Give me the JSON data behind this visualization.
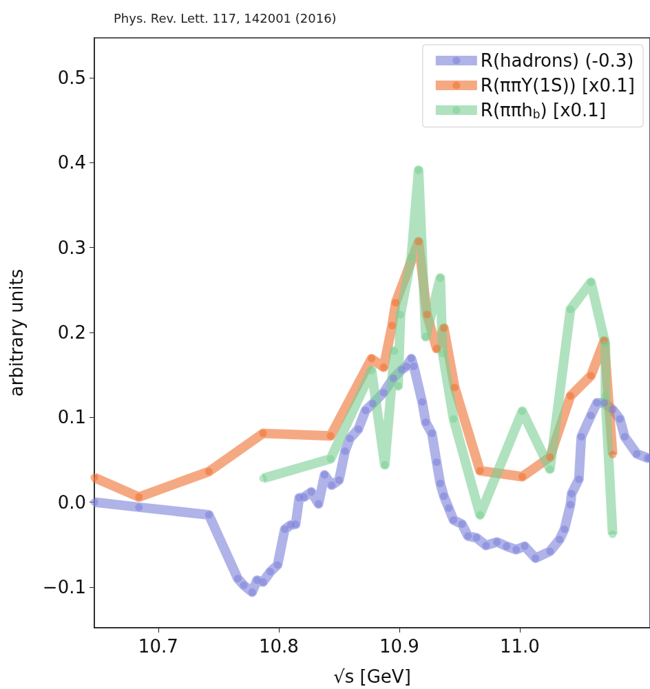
{
  "chart_data": {
    "type": "line",
    "title": "Phys. Rev. Lett. 117, 142001 (2016)",
    "xlabel": "√s [GeV]",
    "ylabel": "arbitrary units",
    "xlim": [
      10.647,
      11.108
    ],
    "xticks": [
      10.7,
      10.8,
      10.9,
      {
        "value": 11.0,
        "label": "11.0"
      }
    ],
    "ylim": [
      -0.148,
      0.547
    ],
    "yticks": [
      {
        "value": -0.1,
        "label": "−0.1"
      },
      {
        "value": 0,
        "label": "0.0"
      },
      0.1,
      0.2,
      0.3,
      0.4,
      0.5
    ],
    "grid": false,
    "legend": "top right",
    "marker": "circle",
    "line_style": "solid",
    "series": [
      {
        "name": "R(hadrons) (-0.3)",
        "color": "#7b80d9",
        "x": [
          10.647,
          10.684,
          10.742,
          10.766,
          10.771,
          10.778,
          10.782,
          10.787,
          10.793,
          10.799,
          10.805,
          10.81,
          10.814,
          10.817,
          10.821,
          10.827,
          10.833,
          10.838,
          10.844,
          10.85,
          10.855,
          10.859,
          10.866,
          10.872,
          10.878,
          10.887,
          10.895,
          10.902,
          10.906,
          10.91,
          10.912,
          10.919,
          10.922,
          10.927,
          10.931,
          10.934,
          10.937,
          10.941,
          10.945,
          10.952,
          10.957,
          10.964,
          10.972,
          10.981,
          10.989,
          10.997,
          11.004,
          11.013,
          11.025,
          11.033,
          11.037,
          11.042,
          11.043,
          11.049,
          11.051,
          11.059,
          11.064,
          11.07,
          11.077,
          11.083,
          11.087,
          11.097,
          11.106,
          11.108
        ],
        "values": [
          0.0,
          -0.006,
          -0.015,
          -0.09,
          -0.098,
          -0.106,
          -0.092,
          -0.094,
          -0.082,
          -0.074,
          -0.032,
          -0.027,
          -0.026,
          0.005,
          0.006,
          0.012,
          -0.002,
          0.032,
          0.02,
          0.026,
          0.06,
          0.075,
          0.086,
          0.108,
          0.116,
          0.129,
          0.146,
          0.156,
          0.16,
          0.169,
          0.16,
          0.118,
          0.094,
          0.081,
          0.047,
          0.022,
          0.007,
          -0.007,
          -0.021,
          -0.026,
          -0.04,
          -0.042,
          -0.051,
          -0.047,
          -0.052,
          -0.056,
          -0.052,
          -0.066,
          -0.058,
          -0.044,
          -0.032,
          -0.003,
          0.01,
          0.027,
          0.077,
          0.102,
          0.117,
          0.117,
          0.109,
          0.098,
          0.077,
          0.057,
          0.052,
          0.052
        ]
      },
      {
        "name": "R(ππY(1S)) [x0.1]",
        "color": "#ef6f2f",
        "x": [
          10.647,
          10.684,
          10.742,
          10.787,
          10.843,
          10.877,
          10.887,
          10.894,
          10.897,
          10.916,
          10.923,
          10.931,
          10.937,
          10.946,
          10.967,
          11.002,
          11.025,
          11.042,
          11.059,
          11.07,
          11.077
        ],
        "values": [
          0.029,
          0.006,
          0.036,
          0.081,
          0.078,
          0.169,
          0.159,
          0.208,
          0.235,
          0.307,
          0.221,
          0.181,
          0.205,
          0.135,
          0.037,
          0.03,
          0.053,
          0.125,
          0.149,
          0.19,
          0.056
        ]
      },
      {
        "name": "R(ππh$_{b}$) [x0.1]",
        "color": "#7ccf94",
        "x": [
          10.787,
          10.843,
          10.877,
          10.888,
          10.896,
          10.899,
          10.901,
          10.91,
          10.916,
          10.922,
          10.934,
          10.936,
          10.945,
          10.967,
          11.002,
          11.025,
          11.042,
          11.059,
          11.071,
          11.071,
          11.077
        ],
        "values": [
          0.028,
          0.051,
          0.155,
          0.044,
          0.178,
          0.137,
          0.221,
          0.289,
          0.391,
          0.195,
          0.264,
          0.175,
          0.098,
          -0.015,
          0.107,
          0.039,
          0.227,
          0.259,
          0.186,
          0.125,
          -0.038
        ]
      }
    ]
  }
}
